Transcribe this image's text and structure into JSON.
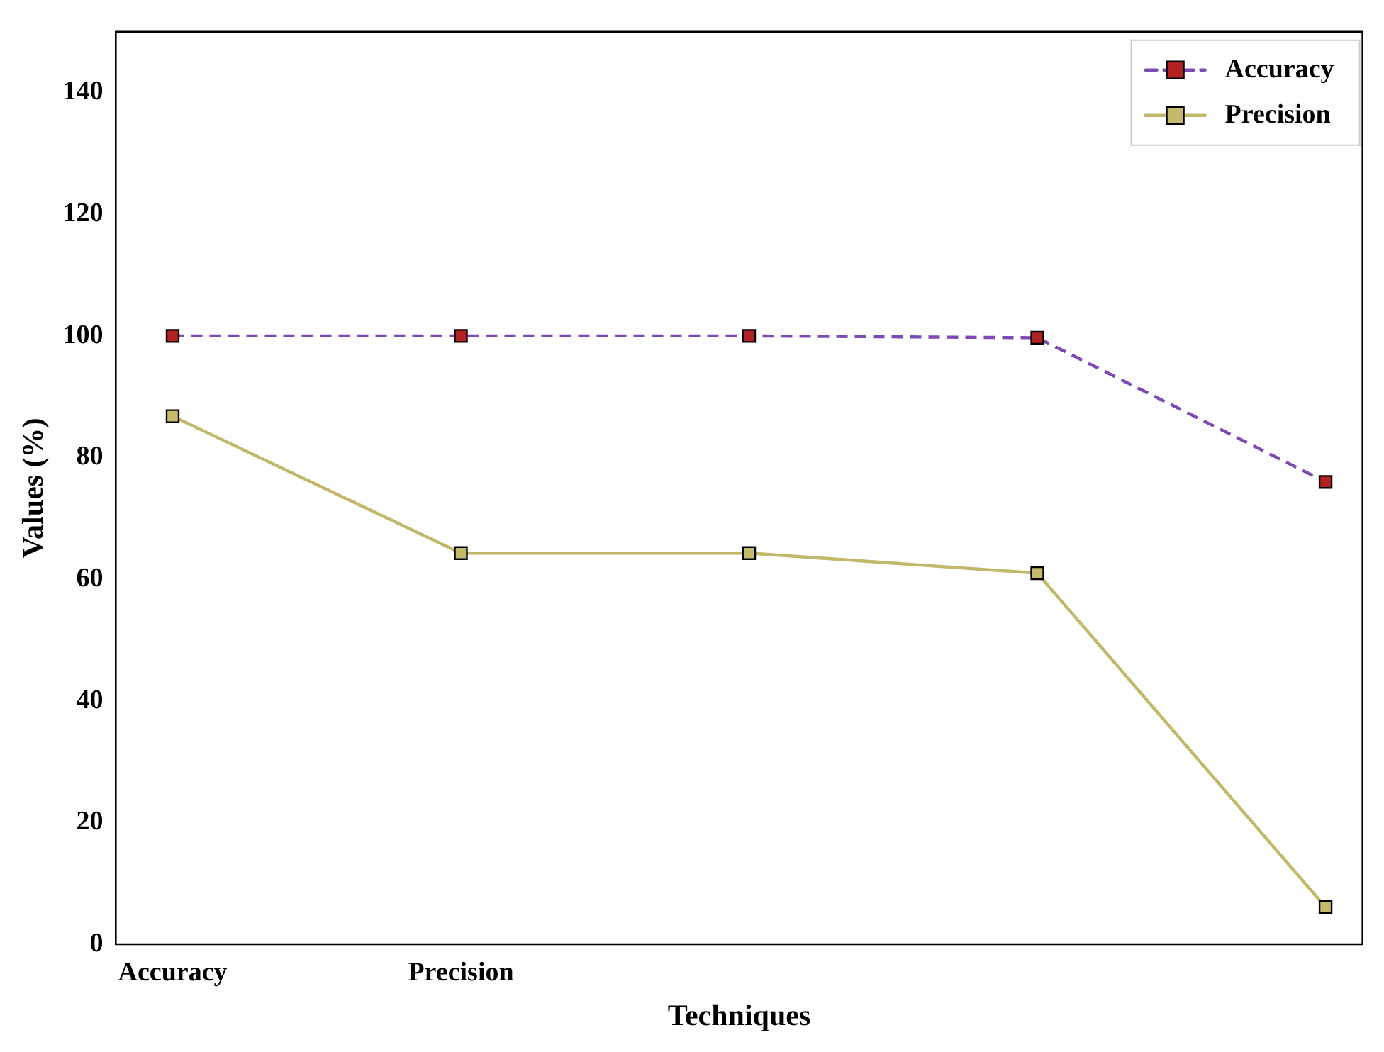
{
  "chart_data": {
    "type": "line",
    "xlabel": "Techniques",
    "ylabel": "Values (%)",
    "categories": [
      "Accuracy",
      "Precision",
      null,
      null,
      null
    ],
    "series": [
      {
        "name": "Accuracy",
        "color": "#7b4ab5",
        "colors": [
          "#b22222",
          "#b22222",
          "#b22222",
          "#b22222",
          "#b22222"
        ],
        "line_style": "dashed",
        "values": [
          100,
          100,
          100,
          99.7,
          76
        ]
      },
      {
        "name": "Precision",
        "color": "#c2b86a",
        "colors": [
          "#c6b96b",
          "#c6b96b",
          "#c6b96b",
          "#c6b96b",
          "#c6b96b"
        ],
        "line_style": "solid",
        "values": [
          86.8,
          64.3,
          64.3,
          61,
          6.1
        ]
      }
    ],
    "ylim": [
      0,
      150
    ],
    "yticks": [
      0,
      20,
      40,
      60,
      80,
      100,
      120,
      140
    ],
    "marker": "square",
    "legend": "top right",
    "grid": false
  }
}
